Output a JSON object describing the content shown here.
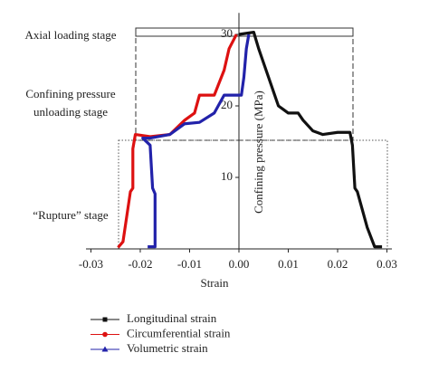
{
  "chart_data": {
    "type": "line",
    "xlabel": "Strain",
    "ylabel": "Confining pressure (MPa)",
    "xlim": [
      -0.031,
      0.031
    ],
    "ylim": [
      0,
      33
    ],
    "xticks": [
      -0.03,
      -0.02,
      -0.01,
      {
        "value": 0,
        "label": "0.00"
      },
      0.01,
      0.02,
      0.03
    ],
    "yticks": [
      10,
      20,
      30
    ],
    "annotations": [
      [
        "Axial loading stage"
      ],
      [
        "Confining pressure",
        "unloading stage"
      ],
      [
        "“Rupture” stage"
      ]
    ],
    "series": [
      {
        "name": "Longitudinal strain",
        "color": "#111111",
        "marker": "square",
        "x": [
          0.0,
          0.003,
          0.004,
          0.005,
          0.006,
          0.007,
          0.0075,
          0.008,
          0.009,
          0.01,
          0.012,
          0.013,
          0.015,
          0.017,
          0.02,
          0.0225,
          0.023,
          0.0235,
          0.024,
          0.026,
          0.0275,
          0.029
        ],
        "values": [
          30,
          30.3,
          28,
          26,
          24,
          22,
          21,
          20,
          19.5,
          19,
          19,
          18,
          16.5,
          16,
          16.3,
          16.3,
          14.5,
          8.5,
          8,
          3,
          0.3,
          0.3
        ]
      },
      {
        "name": "Circumferential strain",
        "color": "#dd1111",
        "marker": "circle",
        "x": [
          -0.0005,
          -0.002,
          -0.003,
          -0.005,
          -0.008,
          -0.009,
          -0.011,
          -0.014,
          -0.018,
          -0.021,
          -0.0215,
          -0.0215,
          -0.022,
          -0.0235,
          -0.0245
        ],
        "values": [
          30,
          28,
          25,
          21.5,
          21.5,
          19,
          18,
          16,
          15.7,
          16,
          14,
          8.5,
          8,
          1,
          0.2
        ]
      },
      {
        "name": "Volumetric strain",
        "color": "#2222aa",
        "marker": "triangle",
        "x": [
          0.002,
          0.0015,
          0.001,
          0.0005,
          -0.003,
          -0.005,
          -0.008,
          -0.011,
          -0.014,
          -0.018,
          -0.0195,
          -0.018,
          -0.0175,
          -0.017,
          -0.017,
          -0.0185
        ],
        "values": [
          30,
          28,
          24,
          21.5,
          21.5,
          19,
          17.7,
          17.5,
          16,
          15.5,
          15.5,
          14.5,
          8.5,
          7.7,
          0.3,
          0.3
        ]
      }
    ]
  }
}
